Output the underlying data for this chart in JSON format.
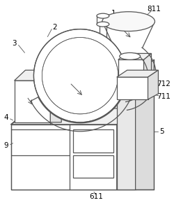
{
  "background_color": "#ffffff",
  "line_color": "#555555",
  "label_color": "#000000",
  "figsize": [
    2.5,
    2.93
  ],
  "dpi": 100
}
